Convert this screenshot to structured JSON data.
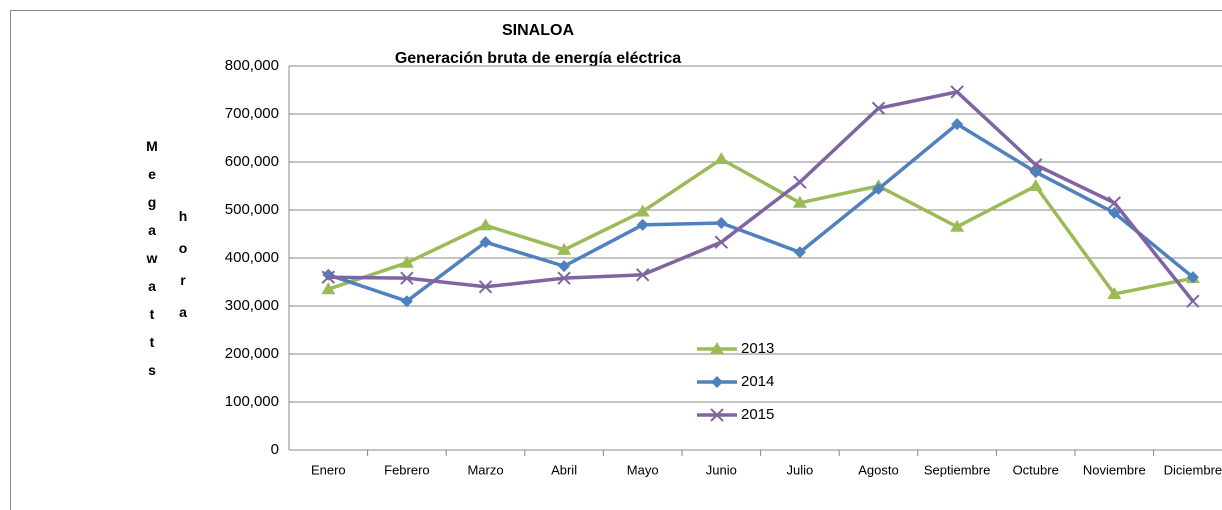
{
  "chart_data": {
    "type": "line",
    "title": "SINALOA",
    "subtitle": "Generación bruta de energía eléctrica",
    "y_label": [
      "Megawatts",
      "hora"
    ],
    "categories": [
      "Enero",
      "Febrero",
      "Marzo",
      "Abril",
      "Mayo",
      "Junio",
      "Julio",
      "Agosto",
      "Septiembre",
      "Octubre",
      "Noviembre",
      "Diciembre"
    ],
    "series": [
      {
        "name": "2013",
        "color": "#9bbb59",
        "marker": "triangle",
        "values": [
          335000,
          390000,
          468000,
          417000,
          497000,
          606000,
          515000,
          550000,
          465000,
          550000,
          325000,
          358000
        ]
      },
      {
        "name": "2014",
        "color": "#4f81bd",
        "marker": "diamond",
        "values": [
          365000,
          310000,
          433000,
          383000,
          469000,
          473000,
          412000,
          544000,
          679000,
          579000,
          494000,
          360000
        ]
      },
      {
        "name": "2015",
        "color": "#8064a2",
        "marker": "x",
        "values": [
          360000,
          358000,
          340000,
          358000,
          365000,
          433000,
          558000,
          712000,
          746000,
          594000,
          515000,
          310000
        ]
      }
    ],
    "ylim": [
      0,
      800000
    ],
    "yticks": [
      0,
      {
        "value": 100000,
        "label": "100,000"
      },
      {
        "value": 200000,
        "label": "200,000"
      },
      {
        "value": 300000,
        "label": "300,000"
      },
      {
        "value": 400000,
        "label": "400,000"
      },
      {
        "value": 500000,
        "label": "500,000"
      },
      {
        "value": 600000,
        "label": "600,000"
      },
      {
        "value": 700000,
        "label": "700,000"
      },
      {
        "value": 800000,
        "label": "800,000"
      }
    ],
    "grid": true,
    "legend": "center"
  }
}
